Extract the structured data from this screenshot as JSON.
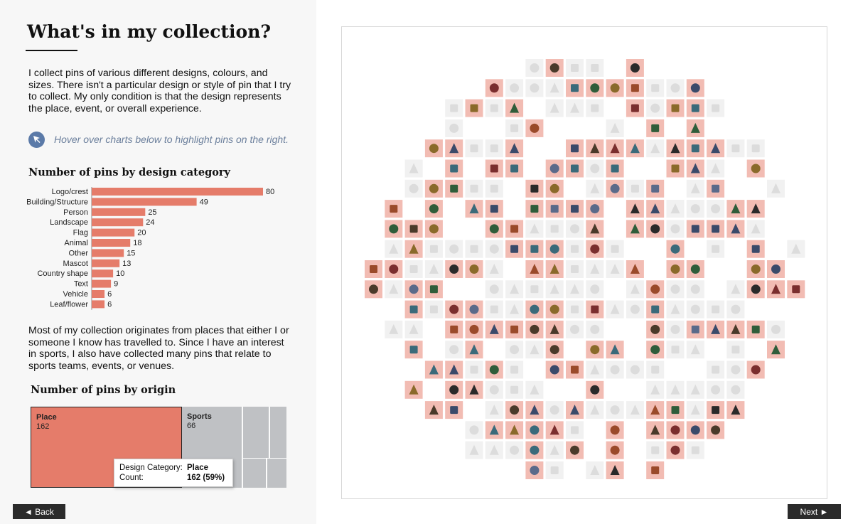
{
  "title": "What's in my collection?",
  "intro": "I collect pins of various different designs, colours, and sizes. There isn't a particular design or style of pin that I try to collect. My only condition is that the design represents the place, event, or overall experience.",
  "hint": "Hover over charts below to highlight pins on the right.",
  "paragraph2": "Most of my collection originates from places that either I or someone I know has travelled to. Since I have an interest in sports, I also have collected many pins that relate to sports teams, events, or venues.",
  "colors": {
    "accent": "#e57c6a",
    "highlight_tile": "#f2bcb3",
    "muted_tile": "#f1f1f1",
    "grey": "#bfc1c4",
    "hint_icon": "#5b7aa8"
  },
  "nav": {
    "back": "◄ Back",
    "next": "Next ►"
  },
  "chart_data": [
    {
      "type": "bar",
      "orientation": "horizontal",
      "title": "Number of pins by design category",
      "categories": [
        "Logo/crest",
        "Building/Structure",
        "Person",
        "Landscape",
        "Flag",
        "Animal",
        "Other",
        "Mascot",
        "Country shape",
        "Text",
        "Vehicle",
        "Leaf/flower"
      ],
      "values": [
        80,
        49,
        25,
        24,
        20,
        18,
        15,
        13,
        10,
        9,
        6,
        6
      ],
      "xlabel": "",
      "ylabel": ""
    },
    {
      "type": "treemap",
      "title": "Number of pins by origin",
      "categories": [
        "Place",
        "Sports"
      ],
      "values": [
        162,
        66
      ],
      "tooltip": {
        "category_key": "Design Category:",
        "category_value": "Place",
        "count_key": "Count:",
        "count_value": "162 (59%)"
      }
    }
  ]
}
